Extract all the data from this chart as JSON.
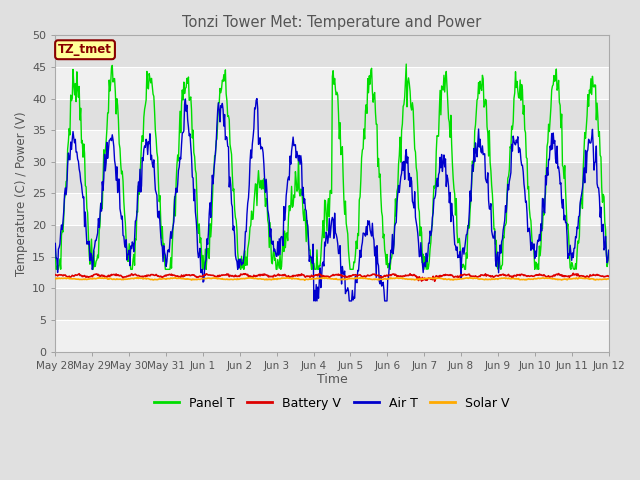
{
  "title": "Tonzi Tower Met: Temperature and Power",
  "xlabel": "Time",
  "ylabel": "Temperature (C) / Power (V)",
  "ylim": [
    0,
    50
  ],
  "yticks": [
    0,
    5,
    10,
    15,
    20,
    25,
    30,
    35,
    40,
    45,
    50
  ],
  "xtick_labels": [
    "May 28",
    "May 29",
    "May 30",
    "May 31",
    "Jun 1",
    "Jun 2",
    "Jun 3",
    "Jun 4",
    "Jun 5",
    "Jun 6",
    "Jun 7",
    "Jun 8",
    "Jun 9",
    "Jun 10",
    "Jun 11",
    "Jun 12"
  ],
  "annotation_text": "TZ_tmet",
  "annotation_bg": "#ffff99",
  "annotation_border": "#880000",
  "annotation_text_color": "#880000",
  "panel_color": "#00dd00",
  "battery_color": "#dd0000",
  "air_color": "#0000cc",
  "solar_color": "#ffaa00",
  "fig_bg_color": "#e0e0e0",
  "plot_bg_color": "#e8e8e8",
  "band_color_light": "#f0f0f0",
  "band_color_dark": "#e0e0e0",
  "title_color": "#555555",
  "label_color": "#555555",
  "tick_color": "#555555"
}
